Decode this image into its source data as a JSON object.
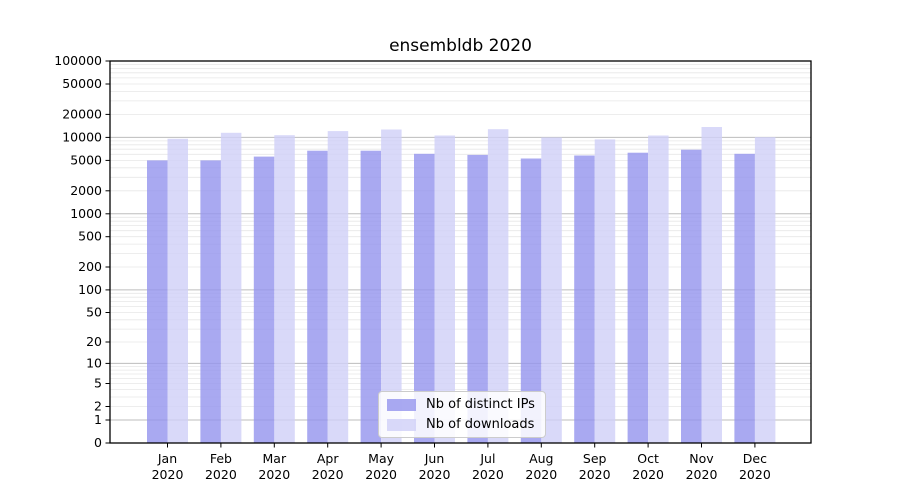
{
  "title": "ensembldb 2020",
  "chart_data": {
    "type": "bar",
    "title": "ensembldb 2020",
    "xlabel": "",
    "ylabel": "",
    "categories": [
      "Jan 2020",
      "Feb 2020",
      "Mar 2020",
      "Apr 2020",
      "May 2020",
      "Jun 2020",
      "Jul 2020",
      "Aug 2020",
      "Sep 2020",
      "Oct 2020",
      "Nov 2020",
      "Dec 2020"
    ],
    "series": [
      {
        "name": "Nb of distinct IPs",
        "color": "rgba(148,148,237,0.8)",
        "values": [
          5000,
          5000,
          5600,
          6700,
          6700,
          6100,
          5900,
          5300,
          5800,
          6300,
          6900,
          6100
        ]
      },
      {
        "name": "Nb of downloads",
        "color": "rgba(208,208,247,0.8)",
        "values": [
          9600,
          11500,
          10700,
          12100,
          12700,
          10600,
          12800,
          10000,
          9400,
          10600,
          13700,
          10100
        ]
      }
    ],
    "y_axis": {
      "scale": "log1p",
      "ylim": [
        0,
        100000
      ],
      "tick_values": [
        0,
        1,
        2,
        5,
        10,
        20,
        50,
        100,
        200,
        500,
        1000,
        2000,
        5000,
        10000,
        20000,
        50000,
        100000
      ],
      "tick_labels": [
        "0",
        "1",
        "2",
        "5",
        "10",
        "20",
        "50",
        "100",
        "200",
        "500",
        "1000",
        "2000",
        "5000",
        "10000",
        "20000",
        "50000",
        "100000"
      ],
      "grid": true,
      "major_grid_color": "#bdbdbd",
      "minor_grid_color": "#e7e7e7"
    },
    "legend": {
      "position": "lower center",
      "items": [
        {
          "label": "Nb of distinct IPs"
        },
        {
          "label": "Nb of downloads"
        }
      ]
    }
  }
}
